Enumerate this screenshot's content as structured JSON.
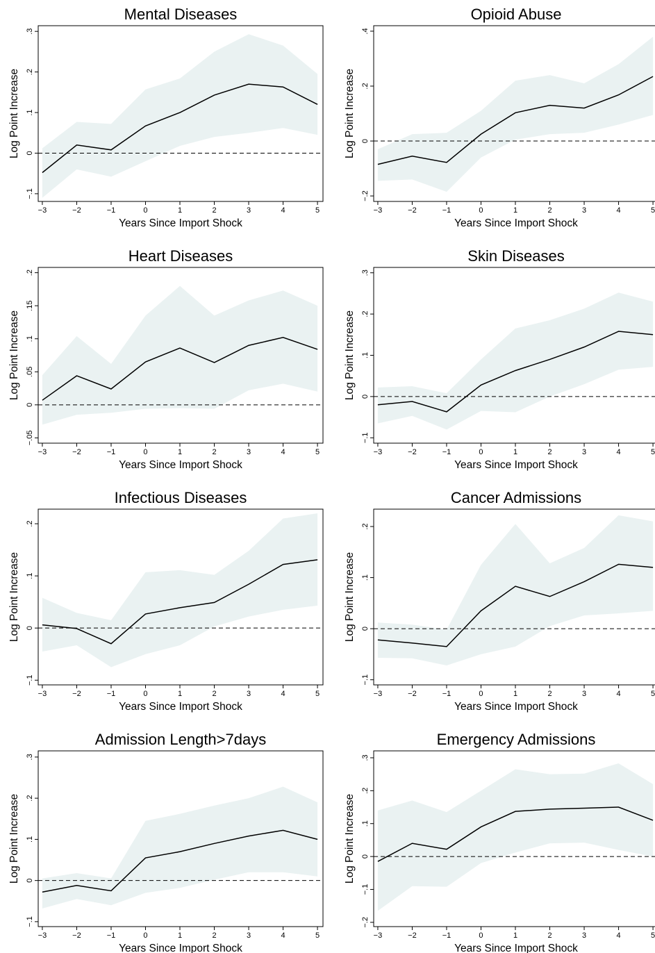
{
  "chart_data": [
    {
      "type": "line",
      "title": "Mental Diseases",
      "xlabel": "Years Since Import Shock",
      "ylabel": "Log Point Increase",
      "x": [
        -3,
        -2,
        -1,
        0,
        1,
        2,
        3,
        4,
        5
      ],
      "xlim": [
        -3.12,
        5.16
      ],
      "xticks": [
        {
          "value": -3,
          "label": "−3"
        },
        {
          "value": -2,
          "label": "−2"
        },
        {
          "value": -1,
          "label": "−1"
        },
        0,
        1,
        2,
        3,
        4,
        5
      ],
      "ylim": [
        -0.119,
        0.314
      ],
      "yticks": [
        {
          "value": -0.1,
          "label": "−.1"
        },
        0,
        {
          "value": 0.1,
          "label": ".1"
        },
        {
          "value": 0.2,
          "label": ".2"
        },
        {
          "value": 0.3,
          "label": ".3"
        }
      ],
      "yline": 0,
      "series": [
        {
          "color": "#000000",
          "values": [
            -0.048,
            0.02,
            0.008,
            0.067,
            0.1,
            0.143,
            0.17,
            0.163,
            0.12
          ]
        }
      ],
      "band": {
        "color": "#eaf2f2",
        "upper": [
          0.012,
          0.077,
          0.072,
          0.157,
          0.184,
          0.25,
          0.293,
          0.265,
          0.195
        ],
        "lower": [
          -0.11,
          -0.04,
          -0.058,
          -0.02,
          0.018,
          0.04,
          0.05,
          0.062,
          0.045
        ]
      }
    },
    {
      "type": "line",
      "title": "Opioid Abuse",
      "xlabel": "Years Since Import Shock",
      "ylabel": "Log Point Increase",
      "x": [
        -3,
        -2,
        -1,
        0,
        1,
        2,
        3,
        4,
        5
      ],
      "xlim": [
        -3.12,
        5.16
      ],
      "xticks": [
        {
          "value": -3,
          "label": "−3"
        },
        {
          "value": -2,
          "label": "−2"
        },
        {
          "value": -1,
          "label": "−1"
        },
        0,
        1,
        2,
        3,
        4,
        5
      ],
      "ylim": [
        -0.22,
        0.42
      ],
      "yticks": [
        {
          "value": -0.2,
          "label": "−.2"
        },
        0,
        {
          "value": 0.2,
          "label": ".2"
        },
        {
          "value": 0.4,
          "label": ".4"
        }
      ],
      "yline": 0,
      "series": [
        {
          "color": "#000000",
          "values": [
            -0.085,
            -0.055,
            -0.078,
            0.025,
            0.103,
            0.13,
            0.12,
            0.168,
            0.235
          ]
        }
      ],
      "band": {
        "color": "#eaf2f2",
        "upper": [
          -0.03,
          0.025,
          0.03,
          0.11,
          0.22,
          0.24,
          0.21,
          0.28,
          0.38
        ],
        "lower": [
          -0.145,
          -0.14,
          -0.185,
          -0.06,
          0.005,
          0.025,
          0.03,
          0.06,
          0.095
        ]
      }
    },
    {
      "type": "line",
      "title": "Heart Diseases",
      "xlabel": "Years Since Import Shock",
      "ylabel": "Log Point Increase",
      "x": [
        -3,
        -2,
        -1,
        0,
        1,
        2,
        3,
        4,
        5
      ],
      "xlim": [
        -3.12,
        5.16
      ],
      "xticks": [
        {
          "value": -3,
          "label": "−3"
        },
        {
          "value": -2,
          "label": "−2"
        },
        {
          "value": -1,
          "label": "−1"
        },
        0,
        1,
        2,
        3,
        4,
        5
      ],
      "ylim": [
        -0.058,
        0.208
      ],
      "yticks": [
        {
          "value": -0.05,
          "label": "−.05"
        },
        0,
        {
          "value": 0.05,
          "label": ".05"
        },
        {
          "value": 0.1,
          "label": ".1"
        },
        {
          "value": 0.15,
          "label": ".15"
        },
        {
          "value": 0.2,
          "label": ".2"
        }
      ],
      "yline": 0,
      "series": [
        {
          "color": "#000000",
          "values": [
            0.007,
            0.044,
            0.024,
            0.065,
            0.086,
            0.064,
            0.09,
            0.102,
            0.084
          ]
        }
      ],
      "band": {
        "color": "#eaf2f2",
        "upper": [
          0.045,
          0.104,
          0.062,
          0.135,
          0.18,
          0.135,
          0.158,
          0.173,
          0.15
        ],
        "lower": [
          -0.03,
          -0.015,
          -0.012,
          -0.006,
          -0.005,
          -0.006,
          0.022,
          0.032,
          0.02
        ]
      }
    },
    {
      "type": "line",
      "title": "Skin Diseases",
      "xlabel": "Years Since Import Shock",
      "ylabel": "Log Point Increase",
      "x": [
        -3,
        -2,
        -1,
        0,
        1,
        2,
        3,
        4,
        5
      ],
      "xlim": [
        -3.12,
        5.16
      ],
      "xticks": [
        {
          "value": -3,
          "label": "−3"
        },
        {
          "value": -2,
          "label": "−2"
        },
        {
          "value": -1,
          "label": "−1"
        },
        0,
        1,
        2,
        3,
        4,
        5
      ],
      "ylim": [
        -0.113,
        0.313
      ],
      "yticks": [
        {
          "value": -0.1,
          "label": "−.1"
        },
        0,
        {
          "value": 0.1,
          "label": ".1"
        },
        {
          "value": 0.2,
          "label": ".2"
        },
        {
          "value": 0.3,
          "label": ".3"
        }
      ],
      "yline": 0,
      "series": [
        {
          "color": "#000000",
          "values": [
            -0.02,
            -0.012,
            -0.037,
            0.028,
            0.063,
            0.09,
            0.12,
            0.158,
            0.15
          ]
        }
      ],
      "band": {
        "color": "#eaf2f2",
        "upper": [
          0.022,
          0.025,
          0.008,
          0.09,
          0.165,
          0.185,
          0.213,
          0.252,
          0.23
        ],
        "lower": [
          -0.065,
          -0.047,
          -0.08,
          -0.035,
          -0.038,
          0.0,
          0.03,
          0.065,
          0.072
        ]
      }
    },
    {
      "type": "line",
      "title": "Infectious Diseases",
      "xlabel": "Years Since Import Shock",
      "ylabel": "Log Point Increase",
      "x": [
        -3,
        -2,
        -1,
        0,
        1,
        2,
        3,
        4,
        5
      ],
      "xlim": [
        -3.12,
        5.16
      ],
      "xticks": [
        {
          "value": -3,
          "label": "−3"
        },
        {
          "value": -2,
          "label": "−2"
        },
        {
          "value": -1,
          "label": "−1"
        },
        0,
        1,
        2,
        3,
        4,
        5
      ],
      "ylim": [
        -0.109,
        0.228
      ],
      "yticks": [
        {
          "value": -0.1,
          "label": "−.1"
        },
        0,
        {
          "value": 0.1,
          "label": ".1"
        },
        {
          "value": 0.2,
          "label": ".2"
        }
      ],
      "yline": 0,
      "series": [
        {
          "color": "#000000",
          "values": [
            0.006,
            -0.001,
            -0.03,
            0.027,
            0.039,
            0.049,
            0.084,
            0.122,
            0.131
          ]
        }
      ],
      "band": {
        "color": "#eaf2f2",
        "upper": [
          0.058,
          0.029,
          0.015,
          0.107,
          0.111,
          0.102,
          0.148,
          0.21,
          0.22
        ],
        "lower": [
          -0.045,
          -0.033,
          -0.075,
          -0.05,
          -0.033,
          0.003,
          0.022,
          0.035,
          0.043
        ]
      }
    },
    {
      "type": "line",
      "title": "Cancer Admissions",
      "xlabel": "Years Since Import Shock",
      "ylabel": "Log Point Increase",
      "x": [
        -3,
        -2,
        -1,
        0,
        1,
        2,
        3,
        4,
        5
      ],
      "xlim": [
        -3.12,
        5.16
      ],
      "xticks": [
        {
          "value": -3,
          "label": "−3"
        },
        {
          "value": -2,
          "label": "−2"
        },
        {
          "value": -1,
          "label": "−1"
        },
        0,
        1,
        2,
        3,
        4,
        5
      ],
      "ylim": [
        -0.11,
        0.234
      ],
      "yticks": [
        {
          "value": -0.1,
          "label": "−.1"
        },
        0,
        {
          "value": 0.1,
          "label": ".1"
        },
        {
          "value": 0.2,
          "label": ".2"
        }
      ],
      "yline": 0,
      "series": [
        {
          "color": "#000000",
          "values": [
            -0.022,
            -0.028,
            -0.035,
            0.035,
            0.083,
            0.063,
            0.092,
            0.126,
            0.12
          ]
        }
      ],
      "band": {
        "color": "#eaf2f2",
        "upper": [
          0.012,
          0.008,
          -0.002,
          0.125,
          0.205,
          0.128,
          0.158,
          0.222,
          0.21
        ],
        "lower": [
          -0.057,
          -0.058,
          -0.072,
          -0.05,
          -0.035,
          0.005,
          0.026,
          0.03,
          0.035
        ]
      }
    },
    {
      "type": "line",
      "title": "Admission Length>7days",
      "xlabel": "Years Since Import Shock",
      "ylabel": "Log Point Increase",
      "x": [
        -3,
        -2,
        -1,
        0,
        1,
        2,
        3,
        4,
        5
      ],
      "xlim": [
        -3.12,
        5.16
      ],
      "xticks": [
        {
          "value": -3,
          "label": "−3"
        },
        {
          "value": -2,
          "label": "−2"
        },
        {
          "value": -1,
          "label": "−1"
        },
        0,
        1,
        2,
        3,
        4,
        5
      ],
      "ylim": [
        -0.112,
        0.315
      ],
      "yticks": [
        {
          "value": -0.1,
          "label": "−.1"
        },
        0,
        {
          "value": 0.1,
          "label": ".1"
        },
        {
          "value": 0.2,
          "label": ".2"
        },
        {
          "value": 0.3,
          "label": ".3"
        }
      ],
      "yline": 0,
      "series": [
        {
          "color": "#000000",
          "values": [
            -0.028,
            -0.012,
            -0.025,
            0.055,
            0.07,
            0.09,
            0.108,
            0.122,
            0.1
          ]
        }
      ],
      "band": {
        "color": "#eaf2f2",
        "upper": [
          0.005,
          0.018,
          0.005,
          0.145,
          0.162,
          0.182,
          0.2,
          0.228,
          0.19
        ],
        "lower": [
          -0.068,
          -0.045,
          -0.06,
          -0.03,
          -0.018,
          0.002,
          0.02,
          0.02,
          0.01
        ]
      }
    },
    {
      "type": "line",
      "title": "Emergency Admissions",
      "xlabel": "Years Since Import Shock",
      "ylabel": "Log Point Increase",
      "x": [
        -3,
        -2,
        -1,
        0,
        1,
        2,
        3,
        4,
        5
      ],
      "xlim": [
        -3.12,
        5.16
      ],
      "xticks": [
        {
          "value": -3,
          "label": "−3"
        },
        {
          "value": -2,
          "label": "−2"
        },
        {
          "value": -1,
          "label": "−1"
        },
        0,
        1,
        2,
        3,
        4,
        5
      ],
      "ylim": [
        -0.213,
        0.321
      ],
      "yticks": [
        {
          "value": -0.2,
          "label": "−.2"
        },
        {
          "value": -0.1,
          "label": "−.1"
        },
        0,
        {
          "value": 0.1,
          "label": ".1"
        },
        {
          "value": 0.2,
          "label": ".2"
        },
        {
          "value": 0.3,
          "label": ".3"
        }
      ],
      "yline": 0,
      "series": [
        {
          "color": "#000000",
          "values": [
            -0.015,
            0.04,
            0.022,
            0.09,
            0.137,
            0.144,
            0.147,
            0.15,
            0.11
          ]
        }
      ],
      "band": {
        "color": "#eaf2f2",
        "upper": [
          0.14,
          0.17,
          0.135,
          0.2,
          0.265,
          0.25,
          0.252,
          0.283,
          0.22
        ],
        "lower": [
          -0.165,
          -0.09,
          -0.092,
          -0.02,
          0.012,
          0.04,
          0.042,
          0.02,
          0.0
        ]
      }
    }
  ]
}
